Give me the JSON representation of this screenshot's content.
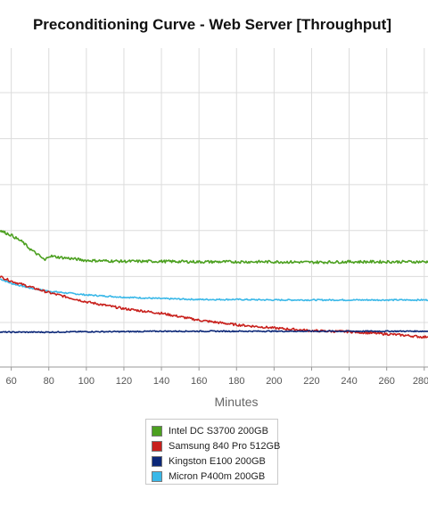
{
  "chart_data": {
    "type": "line",
    "title": "Preconditioning Curve - Web Server [Throughput]",
    "xlabel": "Minutes",
    "ylabel": "",
    "x_ticks": [
      60,
      80,
      100,
      120,
      140,
      160,
      180,
      200,
      220,
      240,
      260,
      280
    ],
    "xlim": [
      54,
      282
    ],
    "ylim": [
      0,
      8
    ],
    "grid": true,
    "legend_position": "bottom-center",
    "series": [
      {
        "name": "Intel DC S3700 200GB",
        "color": "#4ca020",
        "x": [
          54,
          60,
          66,
          70,
          75,
          78,
          80,
          85,
          90,
          100,
          120,
          140,
          160,
          180,
          200,
          220,
          240,
          260,
          282
        ],
        "y": [
          2.0,
          1.9,
          1.75,
          1.6,
          1.45,
          1.35,
          1.45,
          1.42,
          1.4,
          1.35,
          1.33,
          1.33,
          1.32,
          1.32,
          1.32,
          1.31,
          1.32,
          1.32,
          1.32
        ]
      },
      {
        "name": "Samsung 840 Pro 512GB",
        "color": "#c8201c",
        "x": [
          54,
          60,
          80,
          100,
          120,
          140,
          160,
          180,
          200,
          220,
          240,
          260,
          270,
          280,
          282
        ],
        "y": [
          1.0,
          0.9,
          0.65,
          0.45,
          0.3,
          0.2,
          0.05,
          -0.05,
          -0.12,
          -0.18,
          -0.2,
          -0.25,
          -0.28,
          -0.32,
          -0.3
        ]
      },
      {
        "name": "Kingston E100 200GB",
        "color": "#0c2878",
        "x": [
          54,
          80,
          100,
          120,
          140,
          160,
          180,
          200,
          220,
          240,
          260,
          282
        ],
        "y": [
          -0.21,
          -0.21,
          -0.2,
          -0.2,
          -0.19,
          -0.19,
          -0.19,
          -0.19,
          -0.19,
          -0.19,
          -0.19,
          -0.19
        ]
      },
      {
        "name": "Micron P400m 200GB",
        "color": "#3ab8e8",
        "x": [
          54,
          60,
          70,
          80,
          100,
          120,
          140,
          160,
          180,
          200,
          220,
          240,
          260,
          282
        ],
        "y": [
          0.95,
          0.85,
          0.75,
          0.68,
          0.6,
          0.55,
          0.52,
          0.5,
          0.5,
          0.49,
          0.49,
          0.49,
          0.49,
          0.49
        ]
      }
    ]
  }
}
